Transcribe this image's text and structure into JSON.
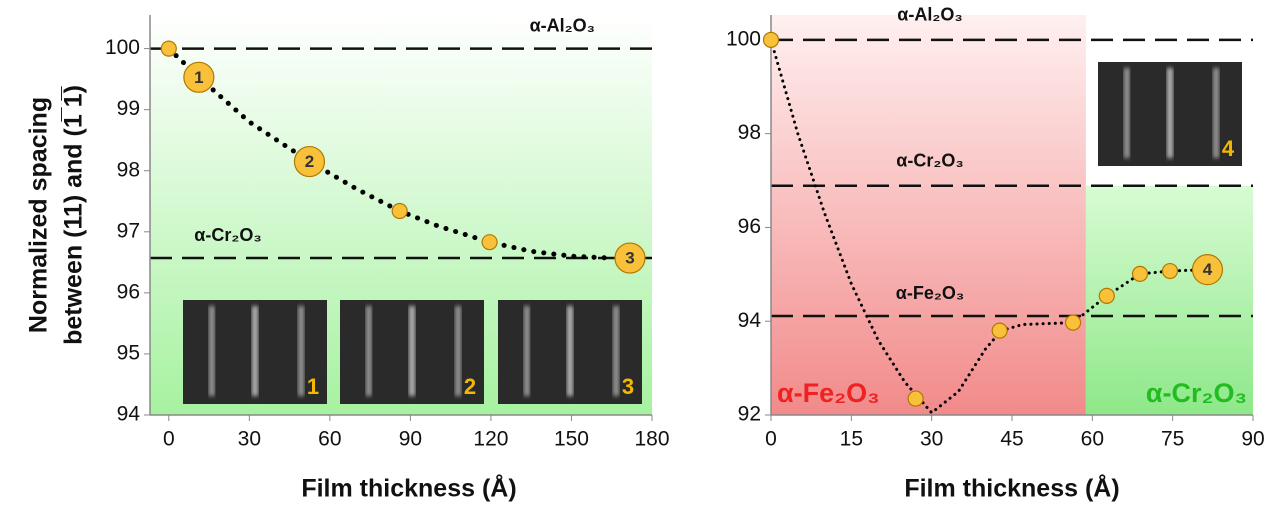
{
  "chart_data": [
    {
      "type": "scatter",
      "y_label": [
        "Normalized spacing",
        "between (11) and (1̅ 1̅)"
      ],
      "x_label": "Film thickness (Å)",
      "xlim": [
        -7,
        180
      ],
      "xticks": [
        0,
        30,
        60,
        90,
        120,
        150,
        180
      ],
      "ylim": [
        94,
        100.55
      ],
      "yticks": [
        94,
        95,
        96,
        97,
        98,
        99,
        100
      ],
      "background": [
        "#ffffff",
        "#a6f2a0"
      ],
      "points": {
        "color": "#f9c13a",
        "x": [
          0,
          11.2,
          52.4,
          86,
          119.5,
          171.8
        ],
        "y": [
          100,
          99.53,
          98.15,
          97.34,
          96.83,
          96.57
        ],
        "point_labels": [
          null,
          "1",
          "2",
          null,
          null,
          "3"
        ]
      },
      "fit": {
        "x": [
          0,
          11.2,
          30,
          52.4,
          70,
          86,
          100,
          119.5,
          135,
          150,
          165
        ],
        "y": [
          100,
          99.53,
          98.8,
          98.15,
          97.7,
          97.34,
          97.1,
          96.83,
          96.68,
          96.6,
          96.57
        ]
      },
      "reference_lines": [
        {
          "label": "α-Al₂O₃",
          "value": 100
        },
        {
          "label": "α-Cr₂O₃",
          "value": 96.57
        }
      ],
      "insets": [
        "1",
        "2",
        "3"
      ]
    },
    {
      "type": "scatter",
      "x_label": "Film thickness (Å)",
      "xlim": [
        0,
        90
      ],
      "xticks": [
        0,
        15,
        30,
        45,
        60,
        75,
        90
      ],
      "ylim": [
        92,
        100.53
      ],
      "yticks": [
        92,
        94,
        96,
        98,
        100
      ],
      "regions": [
        {
          "label": "α-Fe₂O₃",
          "from": 0,
          "to": 58.8,
          "color": "#ee2222",
          "fill": [
            "#fff0f0",
            "#f28a8a"
          ]
        },
        {
          "label": "α-Cr₂O₃",
          "from": 58.8,
          "to": 90,
          "color": "#22bb22",
          "fill": [
            "#d8fbd4",
            "#8ee888"
          ],
          "top": 96.89
        }
      ],
      "points": {
        "color": "#f9c13a",
        "x": [
          0,
          27,
          42.7,
          56.4,
          62.7,
          68.9,
          74.5,
          81.5
        ],
        "y": [
          100,
          92.35,
          93.8,
          93.97,
          94.54,
          95.01,
          95.07,
          95.1
        ],
        "point_labels": [
          null,
          null,
          null,
          null,
          null,
          null,
          null,
          "4"
        ]
      },
      "fit": {
        "x": [
          0,
          5,
          10,
          15,
          20,
          25,
          30,
          35,
          40,
          43,
          47,
          56.4,
          62.7,
          68.9,
          74.5,
          81.5
        ],
        "y": [
          100,
          98,
          96.3,
          94.8,
          93.6,
          92.7,
          92.05,
          92.5,
          93.4,
          93.8,
          93.93,
          93.97,
          94.54,
          95.01,
          95.07,
          95.1
        ]
      },
      "reference_lines": [
        {
          "label": "α-Al₂O₃",
          "value": 100
        },
        {
          "label": "α-Cr₂O₃",
          "value": 96.89
        },
        {
          "label": "α-Fe₂O₃",
          "value": 94.11
        }
      ],
      "insets": [
        "4"
      ]
    }
  ]
}
